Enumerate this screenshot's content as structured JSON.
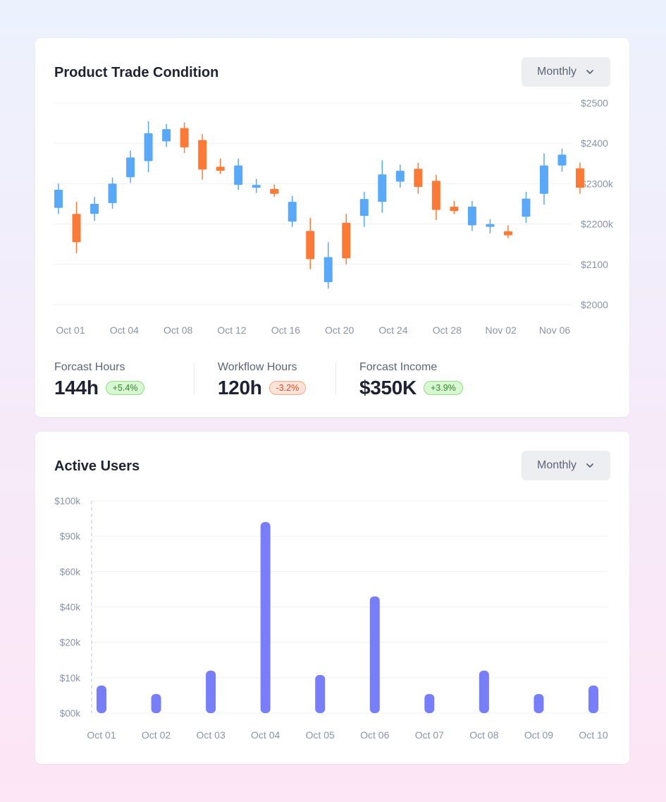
{
  "trade_card": {
    "title": "Product Trade Condition",
    "dropdown_label": "Monthly",
    "stats": [
      {
        "label": "Forcast Hours",
        "value": "144h",
        "change": "+5.4%",
        "trend": "up"
      },
      {
        "label": "Workflow Hours",
        "value": "120h",
        "change": "-3.2%",
        "trend": "down"
      },
      {
        "label": "Forcast Income",
        "value": "$350K",
        "change": "+3.9%",
        "trend": "up"
      }
    ]
  },
  "users_card": {
    "title": "Active Users",
    "dropdown_label": "Monthly"
  },
  "colors": {
    "up_candle": "#5aa8f8",
    "down_candle": "#fb7a38",
    "bar": "#787ef8",
    "grid": "#eef0f5",
    "axis_text": "#8a93a6"
  },
  "icons": {
    "dropdown": "chevron-down-icon"
  },
  "chart_data": [
    {
      "type": "candlestick",
      "title": "Product Trade Condition",
      "y_tick_labels": [
        "$2500",
        "$2400",
        "$2300k",
        "$2200k",
        "$2100",
        "$2000"
      ],
      "y_tick_values": [
        2500,
        2400,
        2300,
        2200,
        2100,
        2000
      ],
      "ylim": [
        2000,
        2500
      ],
      "x_tick_labels": [
        "Oct 01",
        "Oct 04",
        "Oct 08",
        "Oct 12",
        "Oct 16",
        "Oct 20",
        "Oct 24",
        "Oct 28",
        "Nov 02",
        "Nov 06"
      ],
      "grid": true,
      "candles": [
        {
          "open": 2240,
          "close": 2285,
          "high": 2300,
          "low": 2225
        },
        {
          "open": 2225,
          "close": 2155,
          "high": 2255,
          "low": 2128
        },
        {
          "open": 2225,
          "close": 2250,
          "high": 2267,
          "low": 2208
        },
        {
          "open": 2252,
          "close": 2300,
          "high": 2315,
          "low": 2238
        },
        {
          "open": 2316,
          "close": 2365,
          "high": 2382,
          "low": 2302
        },
        {
          "open": 2356,
          "close": 2425,
          "high": 2455,
          "low": 2328
        },
        {
          "open": 2405,
          "close": 2435,
          "high": 2448,
          "low": 2391
        },
        {
          "open": 2438,
          "close": 2390,
          "high": 2452,
          "low": 2376
        },
        {
          "open": 2408,
          "close": 2335,
          "high": 2423,
          "low": 2310
        },
        {
          "open": 2342,
          "close": 2332,
          "high": 2362,
          "low": 2324
        },
        {
          "open": 2297,
          "close": 2345,
          "high": 2362,
          "low": 2285
        },
        {
          "open": 2290,
          "close": 2297,
          "high": 2312,
          "low": 2277
        },
        {
          "open": 2287,
          "close": 2275,
          "high": 2298,
          "low": 2267
        },
        {
          "open": 2206,
          "close": 2255,
          "high": 2270,
          "low": 2193
        },
        {
          "open": 2183,
          "close": 2113,
          "high": 2215,
          "low": 2088
        },
        {
          "open": 2056,
          "close": 2118,
          "high": 2155,
          "low": 2040
        },
        {
          "open": 2203,
          "close": 2115,
          "high": 2225,
          "low": 2100
        },
        {
          "open": 2220,
          "close": 2262,
          "high": 2280,
          "low": 2193
        },
        {
          "open": 2255,
          "close": 2323,
          "high": 2358,
          "low": 2228
        },
        {
          "open": 2305,
          "close": 2332,
          "high": 2347,
          "low": 2290
        },
        {
          "open": 2337,
          "close": 2292,
          "high": 2352,
          "low": 2275
        },
        {
          "open": 2307,
          "close": 2235,
          "high": 2322,
          "low": 2210
        },
        {
          "open": 2243,
          "close": 2232,
          "high": 2257,
          "low": 2225
        },
        {
          "open": 2197,
          "close": 2243,
          "high": 2257,
          "low": 2183
        },
        {
          "open": 2193,
          "close": 2200,
          "high": 2212,
          "low": 2177
        },
        {
          "open": 2182,
          "close": 2172,
          "high": 2197,
          "low": 2165
        },
        {
          "open": 2218,
          "close": 2263,
          "high": 2280,
          "low": 2203
        },
        {
          "open": 2275,
          "close": 2345,
          "high": 2375,
          "low": 2248
        },
        {
          "open": 2345,
          "close": 2372,
          "high": 2387,
          "low": 2330
        },
        {
          "open": 2338,
          "close": 2290,
          "high": 2352,
          "low": 2275
        }
      ]
    },
    {
      "type": "bar",
      "title": "Active Users",
      "categories": [
        "Oct 01",
        "Oct 02",
        "Oct 03",
        "Oct 04",
        "Oct 05",
        "Oct 06",
        "Oct 07",
        "Oct 08",
        "Oct 09",
        "Oct 10"
      ],
      "y_tick_labels": [
        "$100k",
        "$90k",
        "$60k",
        "$40k",
        "$20k",
        "$10k",
        "$00k"
      ],
      "values": [
        13,
        9,
        20,
        90,
        18,
        55,
        9,
        20,
        9,
        13
      ],
      "grid": true,
      "note": "values estimated as approximate percentages of the axis range"
    }
  ]
}
